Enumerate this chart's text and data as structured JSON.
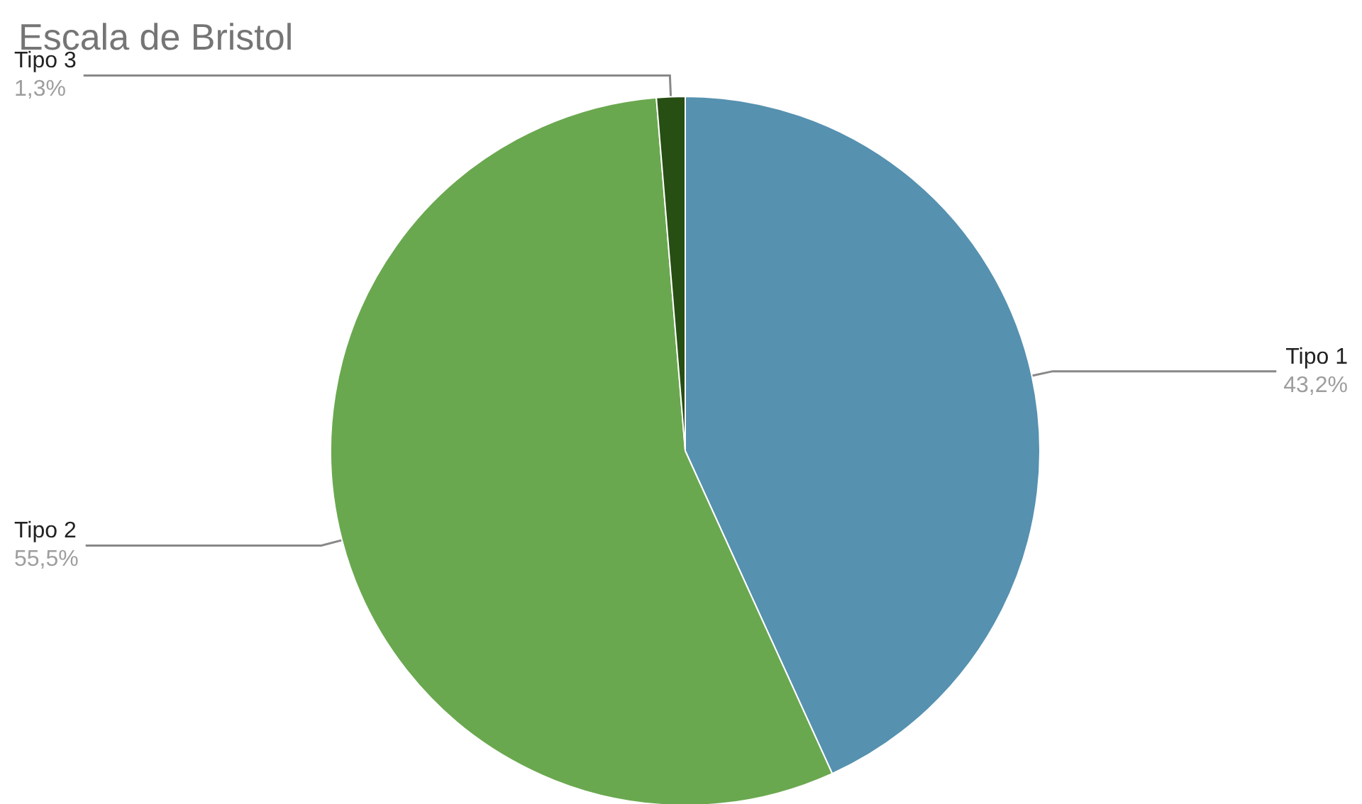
{
  "chart_data": {
    "type": "pie",
    "title": "Escala de Bristol",
    "categories": [
      "Tipo 1",
      "Tipo 2",
      "Tipo 3"
    ],
    "values": [
      43.2,
      55.5,
      1.3
    ],
    "value_labels": [
      "43,2%",
      "55,5%",
      "1,3%"
    ],
    "colors": [
      "#5691b0",
      "#6aa84f",
      "#274e13"
    ],
    "legend": false
  }
}
